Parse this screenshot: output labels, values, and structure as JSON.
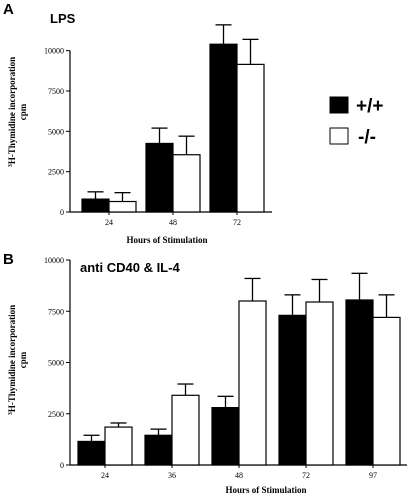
{
  "chart_data": [
    {
      "panel": "A",
      "type": "bar",
      "title": "LPS",
      "categories": [
        "24",
        "48",
        "72"
      ],
      "series": [
        {
          "name": "+/+",
          "values": [
            800,
            4250,
            10400
          ],
          "errors": [
            450,
            950,
            1200
          ]
        },
        {
          "name": "-/-",
          "values": [
            650,
            3550,
            9150
          ],
          "errors": [
            550,
            1150,
            1550
          ]
        }
      ],
      "xlabel": "Hours of Stimulation",
      "ylabel_sup": "3",
      "ylabel_main": "H-Thymidine incorporation",
      "ylabel_unit": "cpm",
      "ylim": [
        0,
        15000
      ],
      "yticks": [
        "0",
        "2500",
        "5000",
        "7500",
        "10000"
      ],
      "ytick_values": [
        0,
        2500,
        5000,
        7500,
        10000
      ],
      "grid": false,
      "legend": "right"
    },
    {
      "panel": "B",
      "type": "bar",
      "title": "anti CD40 & IL-4",
      "categories": [
        "24",
        "36",
        "48",
        "72",
        "97"
      ],
      "series": [
        {
          "name": "+/+",
          "values": [
            1150,
            1450,
            2800,
            7300,
            8050
          ],
          "errors": [
            300,
            300,
            550,
            1000,
            1300
          ]
        },
        {
          "name": "-/-",
          "values": [
            1850,
            3400,
            8000,
            7950,
            7200
          ],
          "errors": [
            200,
            550,
            1100,
            1100,
            1100
          ]
        }
      ],
      "xlabel": "Hours of Stimulation",
      "ylabel_sup": "3",
      "ylabel_main": "H-Thymidine incorporation",
      "ylabel_unit": "cpm",
      "ylim": [
        0,
        10000
      ],
      "yticks": [
        "0",
        "2500",
        "5000",
        "7500",
        "10000"
      ],
      "ytick_values": [
        0,
        2500,
        5000,
        7500,
        10000
      ],
      "grid": false
    }
  ],
  "legend": {
    "items": [
      {
        "label": "+/+",
        "color": "#000000"
      },
      {
        "label": "-/-",
        "color": "#ffffff"
      }
    ]
  },
  "colors": {
    "wildtype": "#000000",
    "knockout": "#ffffff",
    "axis": "#000000"
  }
}
